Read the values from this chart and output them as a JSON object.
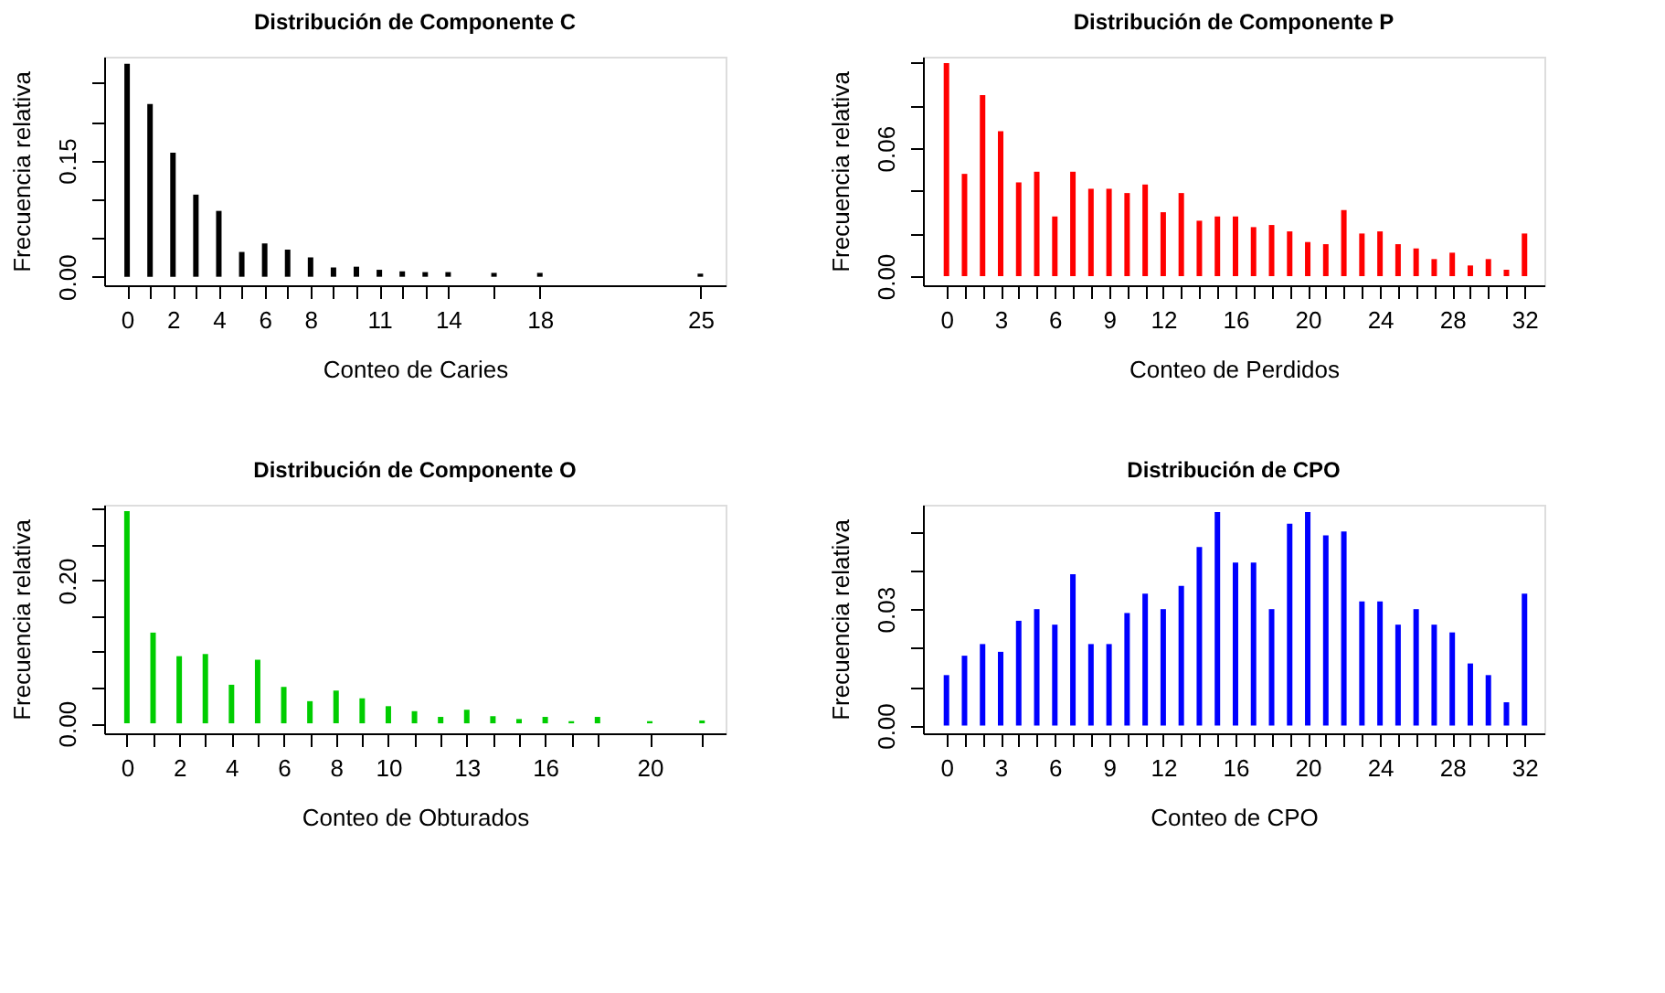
{
  "chart_data": [
    {
      "type": "bar",
      "title": "Distribución de Componente C",
      "xlabel": "Conteo de Caries",
      "ylabel": "Frecuencia relativa",
      "color": "#000000",
      "grid": false,
      "x": [
        0,
        1,
        2,
        3,
        4,
        5,
        6,
        7,
        8,
        9,
        10,
        11,
        12,
        13,
        14,
        16,
        18,
        25
      ],
      "values": [
        0.275,
        0.223,
        0.16,
        0.106,
        0.085,
        0.032,
        0.043,
        0.035,
        0.025,
        0.012,
        0.013,
        0.009,
        0.007,
        0.006,
        0.006,
        0.005,
        0.005,
        0.004
      ],
      "xlim": [
        -1,
        26.1
      ],
      "ylim": [
        -0.011,
        0.284
      ],
      "xticks": [
        0,
        {
          "value": 1,
          "label": null
        },
        2,
        {
          "value": 3,
          "label": null
        },
        4,
        {
          "value": 5,
          "label": null
        },
        6,
        {
          "value": 7,
          "label": null
        },
        8,
        {
          "value": 9,
          "label": null
        },
        {
          "value": 10,
          "label": null
        },
        11,
        {
          "value": 12,
          "label": null
        },
        {
          "value": 13,
          "label": null
        },
        14,
        {
          "value": 16,
          "label": null
        },
        18,
        25
      ],
      "yticks": [
        {
          "value": 0,
          "label": "0.00"
        },
        {
          "value": 0.05,
          "label": null
        },
        {
          "value": 0.1,
          "label": null
        },
        0.15,
        {
          "value": 0.2,
          "label": null
        },
        {
          "value": 0.25,
          "label": null
        }
      ]
    },
    {
      "type": "bar",
      "title": "Distribución de Componente P",
      "xlabel": "Conteo de Perdidos",
      "ylabel": "Frecuencia relativa",
      "color": "#ff0000",
      "grid": false,
      "x": [
        0,
        1,
        2,
        3,
        4,
        5,
        6,
        7,
        8,
        9,
        10,
        11,
        12,
        13,
        14,
        15,
        16,
        17,
        18,
        19,
        20,
        21,
        22,
        23,
        24,
        25,
        26,
        27,
        28,
        29,
        30,
        31,
        32
      ],
      "values": [
        0.1,
        0.048,
        0.085,
        0.068,
        0.044,
        0.049,
        0.028,
        0.049,
        0.041,
        0.041,
        0.039,
        0.043,
        0.03,
        0.039,
        0.026,
        0.028,
        0.028,
        0.023,
        0.024,
        0.021,
        0.016,
        0.015,
        0.031,
        0.02,
        0.021,
        0.015,
        0.013,
        0.008,
        0.011,
        0.005,
        0.008,
        0.003,
        0.02
      ],
      "xlim": [
        -1.3,
        33.1
      ],
      "ylim": [
        -0.0043,
        0.103
      ],
      "xticks": [
        0,
        {
          "value": 1,
          "label": null
        },
        {
          "value": 2,
          "label": null
        },
        3,
        {
          "value": 4,
          "label": null
        },
        {
          "value": 5,
          "label": null
        },
        6,
        {
          "value": 7,
          "label": null
        },
        {
          "value": 8,
          "label": null
        },
        9,
        {
          "value": 10,
          "label": null
        },
        {
          "value": 11,
          "label": null
        },
        12,
        {
          "value": 13,
          "label": null
        },
        {
          "value": 14,
          "label": null
        },
        {
          "value": 15,
          "label": null
        },
        16,
        {
          "value": 17,
          "label": null
        },
        {
          "value": 18,
          "label": null
        },
        {
          "value": 19,
          "label": null
        },
        20,
        {
          "value": 21,
          "label": null
        },
        {
          "value": 22,
          "label": null
        },
        {
          "value": 23,
          "label": null
        },
        24,
        {
          "value": 25,
          "label": null
        },
        {
          "value": 26,
          "label": null
        },
        {
          "value": 27,
          "label": null
        },
        28,
        {
          "value": 29,
          "label": null
        },
        {
          "value": 30,
          "label": null
        },
        {
          "value": 31,
          "label": null
        },
        32
      ],
      "yticks": [
        {
          "value": 0,
          "label": "0.00"
        },
        {
          "value": 0.02,
          "label": null
        },
        {
          "value": 0.04,
          "label": null
        },
        0.06,
        {
          "value": 0.08,
          "label": null
        },
        {
          "value": 0.1,
          "label": null
        }
      ]
    },
    {
      "type": "bar",
      "title": "Distribución de Componente O",
      "xlabel": "Conteo de Obturados",
      "ylabel": "Frecuencia relativa",
      "color": "#00cd00",
      "grid": false,
      "x": [
        0,
        1,
        2,
        3,
        4,
        5,
        6,
        7,
        8,
        9,
        10,
        11,
        12,
        13,
        14,
        15,
        16,
        17,
        18,
        20,
        22
      ],
      "values": [
        0.297,
        0.127,
        0.094,
        0.097,
        0.054,
        0.089,
        0.051,
        0.031,
        0.046,
        0.035,
        0.024,
        0.017,
        0.009,
        0.019,
        0.01,
        0.006,
        0.009,
        0.003,
        0.009,
        0.003,
        0.004
      ],
      "xlim": [
        -0.87,
        22.9
      ],
      "ylim": [
        -0.014,
        0.306
      ],
      "xticks": [
        0,
        {
          "value": 1,
          "label": null
        },
        2,
        {
          "value": 3,
          "label": null
        },
        4,
        {
          "value": 5,
          "label": null
        },
        6,
        {
          "value": 7,
          "label": null
        },
        8,
        {
          "value": 9,
          "label": null
        },
        10,
        {
          "value": 11,
          "label": null
        },
        {
          "value": 12,
          "label": null
        },
        13,
        {
          "value": 14,
          "label": null
        },
        {
          "value": 15,
          "label": null
        },
        16,
        {
          "value": 17,
          "label": null
        },
        {
          "value": 18,
          "label": null
        },
        20,
        {
          "value": 22,
          "label": null
        }
      ],
      "yticks": [
        {
          "value": 0,
          "label": "0.00"
        },
        {
          "value": 0.05,
          "label": null
        },
        {
          "value": 0.1,
          "label": null
        },
        {
          "value": 0.15,
          "label": null
        },
        {
          "value": 0.2,
          "label": "0.20"
        },
        {
          "value": 0.25,
          "label": null
        },
        {
          "value": 0.3,
          "label": null
        }
      ]
    },
    {
      "type": "bar",
      "title": "Distribución de CPO",
      "xlabel": "Conteo de CPO",
      "ylabel": "Frecuencia relativa",
      "color": "#0000ff",
      "grid": false,
      "x": [
        0,
        1,
        2,
        3,
        4,
        5,
        6,
        7,
        8,
        9,
        10,
        11,
        12,
        13,
        14,
        15,
        16,
        17,
        18,
        19,
        20,
        21,
        22,
        23,
        24,
        25,
        26,
        27,
        28,
        29,
        30,
        31,
        32
      ],
      "values": [
        0.013,
        0.018,
        0.021,
        0.019,
        0.027,
        0.03,
        0.026,
        0.039,
        0.021,
        0.021,
        0.029,
        0.034,
        0.03,
        0.036,
        0.046,
        0.055,
        0.042,
        0.042,
        0.03,
        0.052,
        0.055,
        0.049,
        0.05,
        0.032,
        0.032,
        0.026,
        0.03,
        0.026,
        0.024,
        0.016,
        0.013,
        0.006,
        0.034
      ],
      "xlim": [
        -1.3,
        33.1
      ],
      "ylim": [
        -0.002,
        0.0569
      ],
      "xticks": [
        0,
        {
          "value": 1,
          "label": null
        },
        {
          "value": 2,
          "label": null
        },
        3,
        {
          "value": 4,
          "label": null
        },
        {
          "value": 5,
          "label": null
        },
        6,
        {
          "value": 7,
          "label": null
        },
        {
          "value": 8,
          "label": null
        },
        9,
        {
          "value": 10,
          "label": null
        },
        {
          "value": 11,
          "label": null
        },
        12,
        {
          "value": 13,
          "label": null
        },
        {
          "value": 14,
          "label": null
        },
        {
          "value": 15,
          "label": null
        },
        16,
        {
          "value": 17,
          "label": null
        },
        {
          "value": 18,
          "label": null
        },
        {
          "value": 19,
          "label": null
        },
        20,
        {
          "value": 21,
          "label": null
        },
        {
          "value": 22,
          "label": null
        },
        {
          "value": 23,
          "label": null
        },
        24,
        {
          "value": 25,
          "label": null
        },
        {
          "value": 26,
          "label": null
        },
        {
          "value": 27,
          "label": null
        },
        28,
        {
          "value": 29,
          "label": null
        },
        {
          "value": 30,
          "label": null
        },
        {
          "value": 31,
          "label": null
        },
        32
      ],
      "yticks": [
        {
          "value": 0,
          "label": "0.00"
        },
        {
          "value": 0.01,
          "label": null
        },
        {
          "value": 0.02,
          "label": null
        },
        0.03,
        {
          "value": 0.04,
          "label": null
        },
        {
          "value": 0.05,
          "label": null
        }
      ]
    }
  ]
}
